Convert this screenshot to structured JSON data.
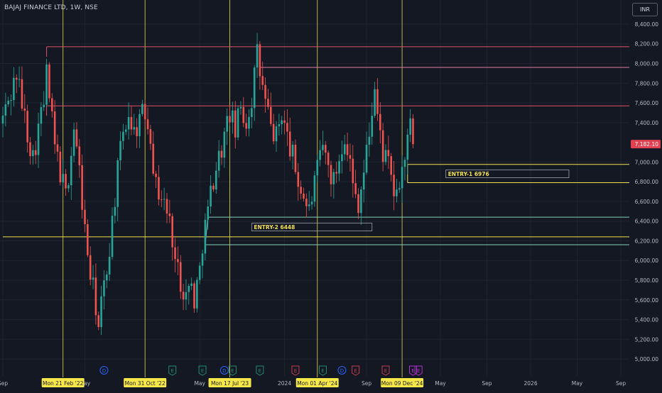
{
  "header": {
    "symbol": "BAJAJ FINANCE LTD, 1W, NSE",
    "currency_button": "INR"
  },
  "colors": {
    "background": "#141823",
    "grid": "#1f2430",
    "up": "#26a69a",
    "down": "#ef5350",
    "yellow": "#f0e050",
    "red_line": "#e0506a",
    "pink_line": "#e07aa0",
    "green_line": "#80d0b8",
    "axis_text": "#b6b9c2"
  },
  "chart_data": {
    "type": "candlestick",
    "ylim": [
      4900,
      8450
    ],
    "y_ticks": [
      {
        "value": 8400,
        "label": "8,400.00"
      },
      {
        "value": 8200,
        "label": "8,200.00"
      },
      {
        "value": 8000,
        "label": "8,000.00"
      },
      {
        "value": 7800,
        "label": "7,800.00"
      },
      {
        "value": 7600,
        "label": "7,600.00"
      },
      {
        "value": 7400,
        "label": "7,400.00"
      },
      {
        "value": 7000,
        "label": "7,000.00"
      },
      {
        "value": 6800,
        "label": "6,800.00"
      },
      {
        "value": 6600,
        "label": "6,600.00"
      },
      {
        "value": 6400,
        "label": "6,400.00"
      },
      {
        "value": 6200,
        "label": "6,200.00"
      },
      {
        "value": 6000,
        "label": "6,000.00"
      },
      {
        "value": 5800,
        "label": "5,800.00"
      },
      {
        "value": 5600,
        "label": "5,600.00"
      },
      {
        "value": 5400,
        "label": "5,400.00"
      },
      {
        "value": 5200,
        "label": "5,200.00"
      },
      {
        "value": 5000,
        "label": "5,000.00"
      }
    ],
    "last_price": {
      "value": 7182.1,
      "label": "7,182.10"
    },
    "x_labels": [
      {
        "bar": 0,
        "label": "Sep"
      },
      {
        "bar": 30,
        "label": "May"
      },
      {
        "bar": 72,
        "label": "May"
      },
      {
        "bar": 103,
        "label": "2024"
      },
      {
        "bar": 133,
        "label": "Sep"
      },
      {
        "bar": 160,
        "label": "May"
      },
      {
        "bar": 177,
        "label": "Sep"
      },
      {
        "bar": 193,
        "label": "2026"
      },
      {
        "bar": 210,
        "label": "May"
      },
      {
        "bar": 226,
        "label": "Sep"
      }
    ],
    "date_markers": [
      {
        "bar": 22,
        "label": "Mon 21 Feb '22"
      },
      {
        "bar": 52,
        "label": "Mon 31 Oct '22"
      },
      {
        "bar": 83,
        "label": "Mon 17 Jul '23"
      },
      {
        "bar": 115,
        "label": "Mon 01 Apr '24"
      },
      {
        "bar": 146,
        "label": "Mon 09 Dec '24"
      }
    ],
    "horizontal_levels": [
      {
        "price": 8170,
        "from_bar": 16,
        "color": "red",
        "name": "resistance"
      },
      {
        "price": 7960,
        "from_bar": 94,
        "color": "pink",
        "name": "resistance"
      },
      {
        "price": 7570,
        "from_bar": 16,
        "color": "red",
        "name": "resistance"
      },
      {
        "price": 6976,
        "from_bar": 148,
        "color": "yellow",
        "name": "entry-1-top"
      },
      {
        "price": 6790,
        "from_bar": 148,
        "color": "yellow",
        "name": "entry-1-bottom"
      },
      {
        "price": 6440,
        "from_bar": 75,
        "color": "green",
        "name": "entry-2-top"
      },
      {
        "price": 6240,
        "from_bar": 0,
        "color": "yellow",
        "name": "entry-2"
      },
      {
        "price": 6160,
        "from_bar": 74,
        "color": "green",
        "name": "entry-2-bottom"
      }
    ],
    "annotations": [
      {
        "label": "ENTRY-1 6976",
        "bar_from": 162,
        "bar_to": 207,
        "price": 6880
      },
      {
        "label": "ENTRY-2 6448",
        "bar_from": 91,
        "bar_to": 135,
        "price": 6340
      }
    ],
    "events": [
      {
        "bar": 37,
        "kind": "D",
        "color": "blue"
      },
      {
        "bar": 62,
        "kind": "E",
        "color": "green"
      },
      {
        "bar": 73,
        "kind": "E",
        "color": "green"
      },
      {
        "bar": 81,
        "kind": "D",
        "color": "blue"
      },
      {
        "bar": 84,
        "kind": "E",
        "color": "green"
      },
      {
        "bar": 94,
        "kind": "E",
        "color": "green"
      },
      {
        "bar": 107,
        "kind": "E",
        "color": "red"
      },
      {
        "bar": 117,
        "kind": "E",
        "color": "green"
      },
      {
        "bar": 124,
        "kind": "D",
        "color": "blue"
      },
      {
        "bar": 129,
        "kind": "E",
        "color": "red"
      },
      {
        "bar": 140,
        "kind": "E",
        "color": "red"
      },
      {
        "bar": 150,
        "kind": "E",
        "color": "purple"
      },
      {
        "bar": 152,
        "kind": "E",
        "color": "purple"
      }
    ],
    "close_path": [
      [
        0,
        7450
      ],
      [
        3,
        7700
      ],
      [
        5,
        7900
      ],
      [
        7,
        7600
      ],
      [
        9,
        7300
      ],
      [
        11,
        7050
      ],
      [
        13,
        7350
      ],
      [
        15,
        7600
      ],
      [
        16,
        7900
      ],
      [
        17,
        7650
      ],
      [
        19,
        7150
      ],
      [
        21,
        6900
      ],
      [
        23,
        6650
      ],
      [
        25,
        7100
      ],
      [
        26,
        7350
      ],
      [
        28,
        6900
      ],
      [
        30,
        6300
      ],
      [
        32,
        5850
      ],
      [
        34,
        5550
      ],
      [
        35,
        5300
      ],
      [
        36,
        5550
      ],
      [
        38,
        5900
      ],
      [
        40,
        6400
      ],
      [
        42,
        6900
      ],
      [
        44,
        7300
      ],
      [
        46,
        7500
      ],
      [
        48,
        7300
      ],
      [
        50,
        7450
      ],
      [
        52,
        7500
      ],
      [
        54,
        7300
      ],
      [
        55,
        7000
      ],
      [
        56,
        6750
      ],
      [
        58,
        6650
      ],
      [
        60,
        6500
      ],
      [
        62,
        6250
      ],
      [
        63,
        6000
      ],
      [
        65,
        5800
      ],
      [
        67,
        5650
      ],
      [
        69,
        5750
      ],
      [
        70,
        5600
      ],
      [
        72,
        5900
      ],
      [
        73,
        6200
      ],
      [
        75,
        6500
      ],
      [
        77,
        6850
      ],
      [
        79,
        7050
      ],
      [
        81,
        7250
      ],
      [
        83,
        7500
      ],
      [
        85,
        7300
      ],
      [
        87,
        7550
      ],
      [
        89,
        7400
      ],
      [
        91,
        7650
      ],
      [
        93,
        8100
      ],
      [
        94,
        7900
      ],
      [
        96,
        7600
      ],
      [
        98,
        7350
      ],
      [
        100,
        7250
      ],
      [
        102,
        7500
      ],
      [
        104,
        7250
      ],
      [
        106,
        7050
      ],
      [
        108,
        6800
      ],
      [
        110,
        6650
      ],
      [
        112,
        6500
      ],
      [
        113,
        6650
      ],
      [
        115,
        6900
      ],
      [
        117,
        7150
      ],
      [
        119,
        6950
      ],
      [
        121,
        6800
      ],
      [
        123,
        7050
      ],
      [
        125,
        7300
      ],
      [
        127,
        7000
      ],
      [
        128,
        6750
      ],
      [
        130,
        6600
      ],
      [
        132,
        6900
      ],
      [
        134,
        7300
      ],
      [
        136,
        7750
      ],
      [
        137,
        7450
      ],
      [
        139,
        7100
      ],
      [
        141,
        6950
      ],
      [
        143,
        6700
      ],
      [
        144,
        6600
      ],
      [
        145,
        6800
      ],
      [
        147,
        7050
      ],
      [
        149,
        7350
      ],
      [
        150,
        7182.1
      ]
    ]
  }
}
